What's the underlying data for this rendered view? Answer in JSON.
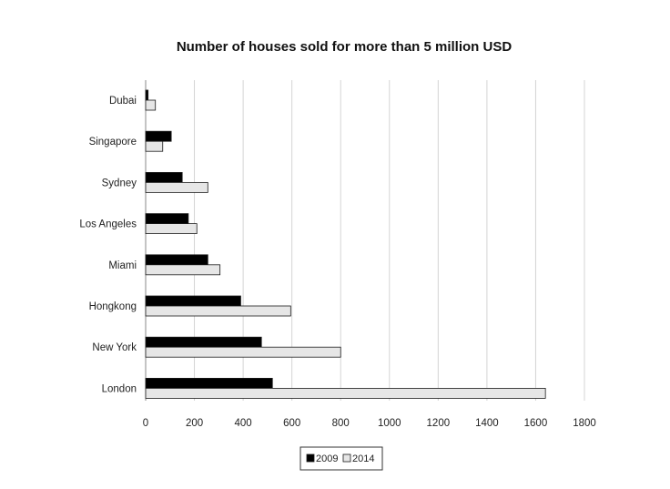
{
  "chart_data": {
    "type": "bar",
    "orientation": "horizontal",
    "title": "Number of houses sold for more than 5 million USD",
    "xlabel": "",
    "ylabel": "",
    "categories": [
      "Dubai",
      "Singapore",
      "Sydney",
      "Los Angeles",
      "Miami",
      "Hongkong",
      "New York",
      "London"
    ],
    "series": [
      {
        "name": "2009",
        "values": [
          10,
          105,
          150,
          175,
          255,
          390,
          475,
          520
        ],
        "color": "#000000"
      },
      {
        "name": "2014",
        "values": [
          40,
          70,
          255,
          210,
          305,
          595,
          800,
          1640
        ],
        "color": "#e6e6e6"
      }
    ],
    "xlim": [
      0,
      1800
    ],
    "ticks": [
      "0",
      "200",
      "400",
      "600",
      "800",
      "1000",
      "1200",
      "1400",
      "1600",
      "1800"
    ],
    "grid": true,
    "legend_position": "bottom"
  }
}
